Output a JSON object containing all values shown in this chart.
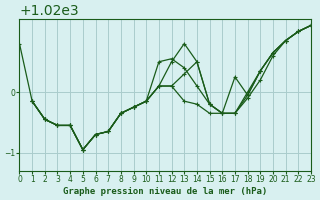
{
  "title": "Graphe pression niveau de la mer (hPa)",
  "bg_color": "#d8f0f0",
  "grid_color": "#aacccc",
  "line_color": "#1a5c1a",
  "marker_color": "#1a5c1a",
  "xlabel_color": "#1a5c1a",
  "xlim": [
    0,
    23
  ],
  "ylim": [
    1018.7,
    1021.2
  ],
  "yticks": [
    1019,
    1020
  ],
  "xticks": [
    0,
    1,
    2,
    3,
    4,
    5,
    6,
    7,
    8,
    9,
    10,
    11,
    12,
    13,
    14,
    15,
    16,
    17,
    18,
    19,
    20,
    21,
    22,
    23
  ],
  "line1_x": [
    0,
    1,
    2,
    3,
    4,
    5,
    6,
    7,
    8,
    9,
    10,
    11,
    12,
    13,
    14,
    15,
    16,
    17,
    18,
    19,
    20,
    21,
    22,
    23
  ],
  "line1_y": [
    1020.8,
    1019.85,
    1019.55,
    1019.45,
    1019.45,
    1019.05,
    1019.3,
    1019.35,
    1019.65,
    1019.75,
    1019.85,
    1020.1,
    1020.1,
    1020.3,
    1020.5,
    1019.8,
    1019.65,
    1019.65,
    1019.9,
    1020.2,
    1020.6,
    1020.85,
    1021.0,
    1021.1
  ],
  "line2_x": [
    1,
    2,
    3,
    4,
    5,
    6,
    7,
    8,
    9,
    10,
    11,
    12,
    13,
    14,
    15,
    16,
    17,
    18,
    19,
    20,
    21,
    22,
    23
  ],
  "line2_y": [
    1019.85,
    1019.55,
    1019.45,
    1019.45,
    1019.05,
    1019.3,
    1019.35,
    1019.65,
    1019.75,
    1019.85,
    1020.1,
    1020.5,
    1020.8,
    1020.5,
    1019.8,
    1019.65,
    1019.65,
    1020.0,
    1020.35,
    1020.65,
    1020.85,
    1021.0,
    1021.1
  ],
  "line3_x": [
    1,
    2,
    3,
    4,
    5,
    6,
    7,
    8,
    9,
    10,
    11,
    12,
    13,
    14,
    15,
    16,
    17,
    18,
    19,
    20,
    21,
    22,
    23
  ],
  "line3_y": [
    1019.85,
    1019.55,
    1019.45,
    1019.45,
    1019.05,
    1019.3,
    1019.35,
    1019.65,
    1019.75,
    1019.85,
    1020.5,
    1020.55,
    1020.4,
    1020.1,
    1019.8,
    1019.65,
    1020.25,
    1019.95,
    1020.35,
    1020.65,
    1020.85,
    1021.0,
    1021.1
  ],
  "line4_x": [
    1,
    2,
    3,
    4,
    5,
    6,
    7,
    8,
    9,
    10,
    11,
    12,
    13,
    14,
    15,
    16,
    17,
    18,
    19,
    20,
    21,
    22,
    23
  ],
  "line4_y": [
    1019.85,
    1019.55,
    1019.45,
    1019.45,
    1019.05,
    1019.3,
    1019.35,
    1019.65,
    1019.75,
    1019.85,
    1020.1,
    1020.1,
    1019.85,
    1019.8,
    1019.65,
    1019.65,
    1019.65,
    1019.95,
    1020.35,
    1020.65,
    1020.85,
    1021.0,
    1021.1
  ]
}
